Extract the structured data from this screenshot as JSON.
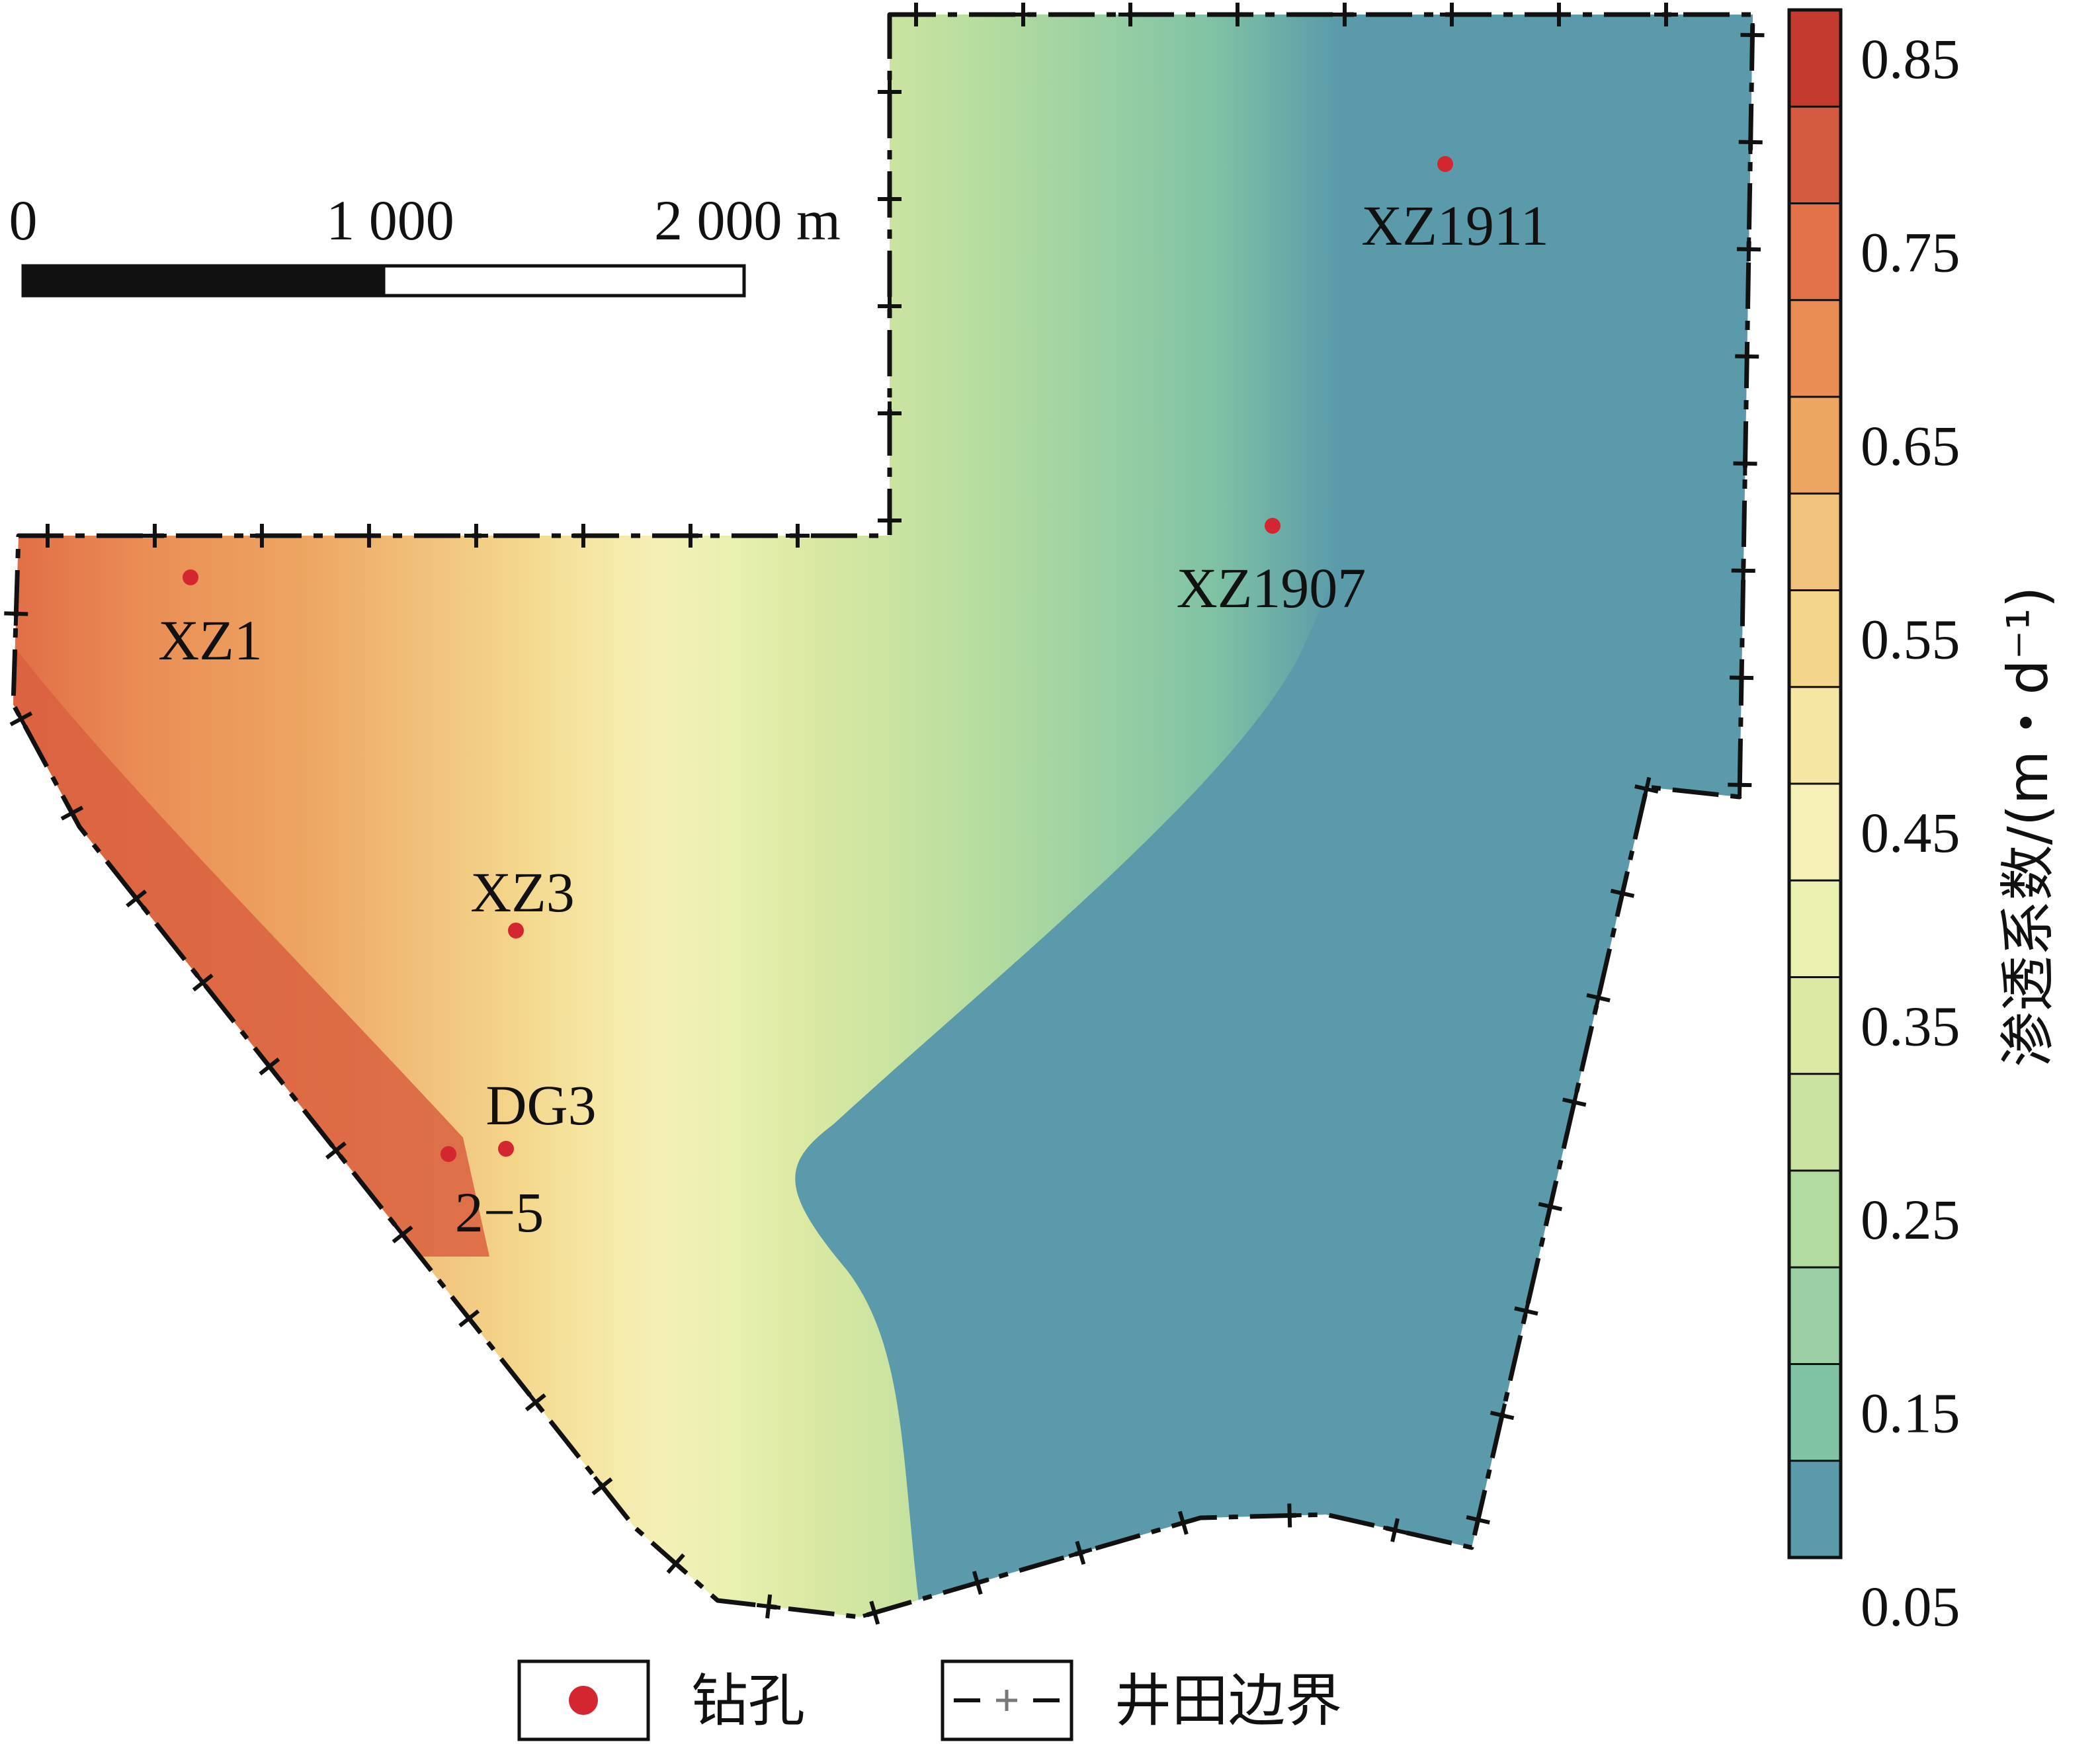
{
  "scale_bar": {
    "ticks": [
      "0",
      "1 000",
      "2 000 m"
    ]
  },
  "boreholes": [
    {
      "id": "XZ1",
      "label": "XZ1"
    },
    {
      "id": "XZ3",
      "label": "XZ3"
    },
    {
      "id": "DG3",
      "label": "DG3"
    },
    {
      "id": "2-5",
      "label": "2−5"
    },
    {
      "id": "XZ1907",
      "label": "XZ1907"
    },
    {
      "id": "XZ1911",
      "label": "XZ1911"
    }
  ],
  "colorbar": {
    "title": "渗透系数/(m・d⁻¹)",
    "tick_labels": [
      "0.85",
      "0.75",
      "0.65",
      "0.55",
      "0.45",
      "0.35",
      "0.25",
      "0.15",
      "0.05"
    ],
    "colors": [
      "#5a9aaa",
      "#7fc2a4",
      "#99cfa3",
      "#b2dba0",
      "#cae3a0",
      "#dbe9a3",
      "#e9f0b0",
      "#f4f0b6",
      "#f5e6a3",
      "#f4d68b",
      "#f1c27c",
      "#eda562",
      "#ea8d55",
      "#e3714a",
      "#d45a40",
      "#c43a2f"
    ]
  },
  "legend": {
    "borehole_label": "钻孔",
    "boundary_label": "井田边界"
  },
  "colors": {
    "borehole_dot": "#d32630",
    "boundary_line": "#111111"
  }
}
